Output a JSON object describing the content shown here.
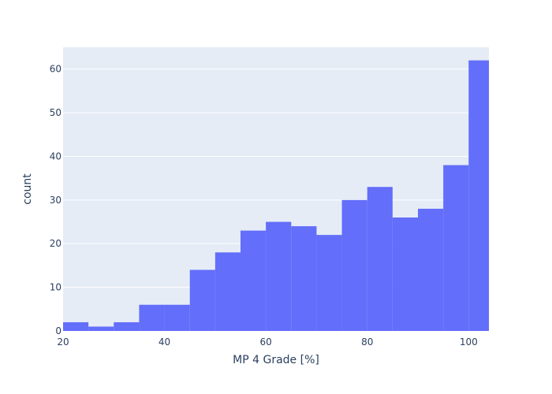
{
  "colors": {
    "background": "#ffffff",
    "plot_background": "#e5ecf6",
    "gridline": "#ffffff",
    "bar": "#636efa",
    "text": "#2a3f5f"
  },
  "chart_data": {
    "type": "bar",
    "subtype": "histogram",
    "xlabel": "MP 4 Grade [%]",
    "ylabel": "count",
    "xlim": [
      20,
      104
    ],
    "ylim": [
      0,
      65
    ],
    "bin_width": 5,
    "bins": [
      {
        "start": 20,
        "end": 25,
        "count": 2
      },
      {
        "start": 25,
        "end": 30,
        "count": 1
      },
      {
        "start": 30,
        "end": 35,
        "count": 2
      },
      {
        "start": 35,
        "end": 40,
        "count": 6
      },
      {
        "start": 40,
        "end": 45,
        "count": 6
      },
      {
        "start": 45,
        "end": 50,
        "count": 14
      },
      {
        "start": 50,
        "end": 55,
        "count": 18
      },
      {
        "start": 55,
        "end": 60,
        "count": 23
      },
      {
        "start": 60,
        "end": 65,
        "count": 25
      },
      {
        "start": 65,
        "end": 70,
        "count": 24
      },
      {
        "start": 70,
        "end": 75,
        "count": 22
      },
      {
        "start": 75,
        "end": 80,
        "count": 30
      },
      {
        "start": 80,
        "end": 85,
        "count": 33
      },
      {
        "start": 85,
        "end": 90,
        "count": 26
      },
      {
        "start": 90,
        "end": 95,
        "count": 28
      },
      {
        "start": 95,
        "end": 100,
        "count": 38
      },
      {
        "start": 100,
        "end": 105,
        "count": 62
      }
    ],
    "x_ticks": [
      20,
      40,
      60,
      80,
      100
    ],
    "y_ticks": [
      0,
      10,
      20,
      30,
      40,
      50,
      60
    ],
    "grid": true
  }
}
